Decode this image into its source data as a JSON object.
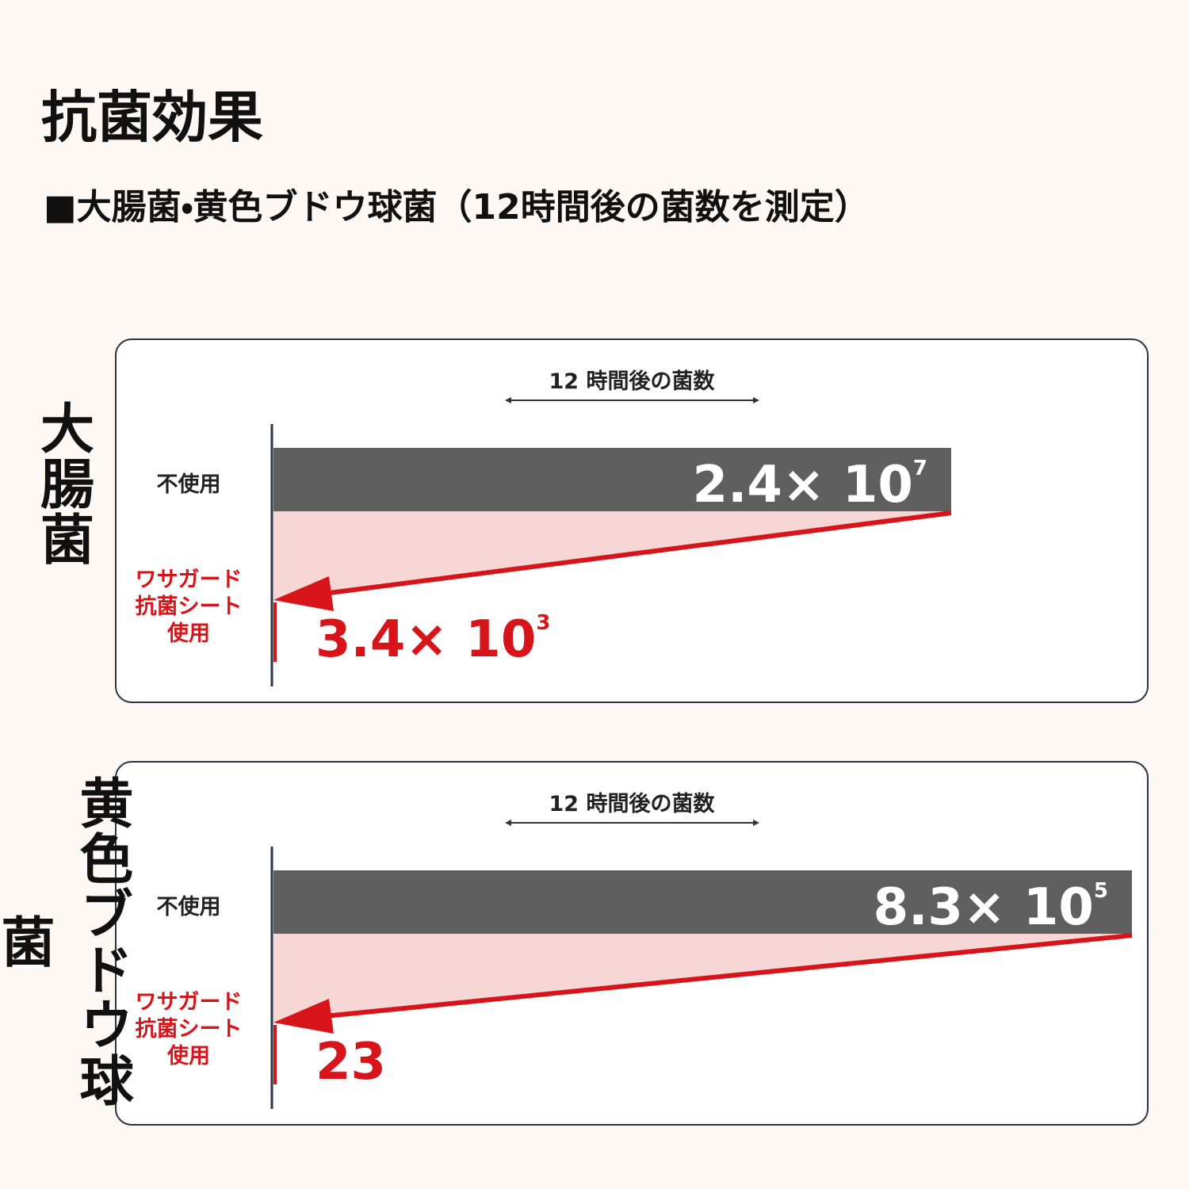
{
  "header": {
    "title": "抗菌効果",
    "subtitle": "■大腸菌・黄色ブドウ球菌（12時間後の菌数を測定）"
  },
  "panels": [
    {
      "name": "大腸菌",
      "axis_label": "12 時間後の菌数",
      "rows": [
        {
          "label": [
            "不使用"
          ],
          "value": {
            "base": "2.4× 10",
            "exponent": "7"
          }
        },
        {
          "label": [
            "ワサガード",
            "抗菌シート",
            "使用"
          ],
          "value": {
            "base": "3.4× 10",
            "exponent": "3"
          }
        }
      ]
    },
    {
      "name": "黄色ブドウ球菌",
      "axis_label": "12 時間後の菌数",
      "rows": [
        {
          "label": [
            "不使用"
          ],
          "value": {
            "base": "8.3× 10",
            "exponent": "5"
          }
        },
        {
          "label": [
            "ワサガード",
            "抗菌シート",
            "使用"
          ],
          "value": {
            "base": "23"
          }
        }
      ]
    }
  ]
}
